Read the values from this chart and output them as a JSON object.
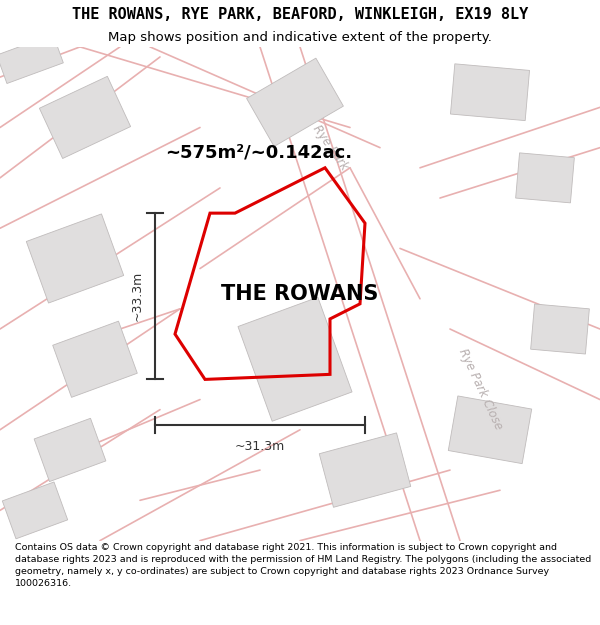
{
  "title_line1": "THE ROWANS, RYE PARK, BEAFORD, WINKLEIGH, EX19 8LY",
  "title_line2": "Map shows position and indicative extent of the property.",
  "property_label": "THE ROWANS",
  "area_label": "~575m²/~0.142ac.",
  "dim_width": "~31.3m",
  "dim_height": "~33.3m",
  "footer_text": "Contains OS data © Crown copyright and database right 2021. This information is subject to Crown copyright and database rights 2023 and is reproduced with the permission of HM Land Registry. The polygons (including the associated geometry, namely x, y co-ordinates) are subject to Crown copyright and database rights 2023 Ordnance Survey 100026316.",
  "map_bg": "#f7f4f4",
  "road_color": "#e8b0b0",
  "road_lw": 1.2,
  "building_face": "#e0dede",
  "building_edge": "#c0bcbc",
  "prop_edge": "#dd0000",
  "prop_lw": 2.2,
  "dim_color": "#333333",
  "road_label_color": "#b8b0b0",
  "header_bg": "#ffffff",
  "footer_bg": "#ffffff",
  "title_fontsize": 11,
  "subtitle_fontsize": 9.5,
  "area_fontsize": 13,
  "prop_label_fontsize": 15,
  "dim_fontsize": 9,
  "road_label_fontsize": 8.5
}
